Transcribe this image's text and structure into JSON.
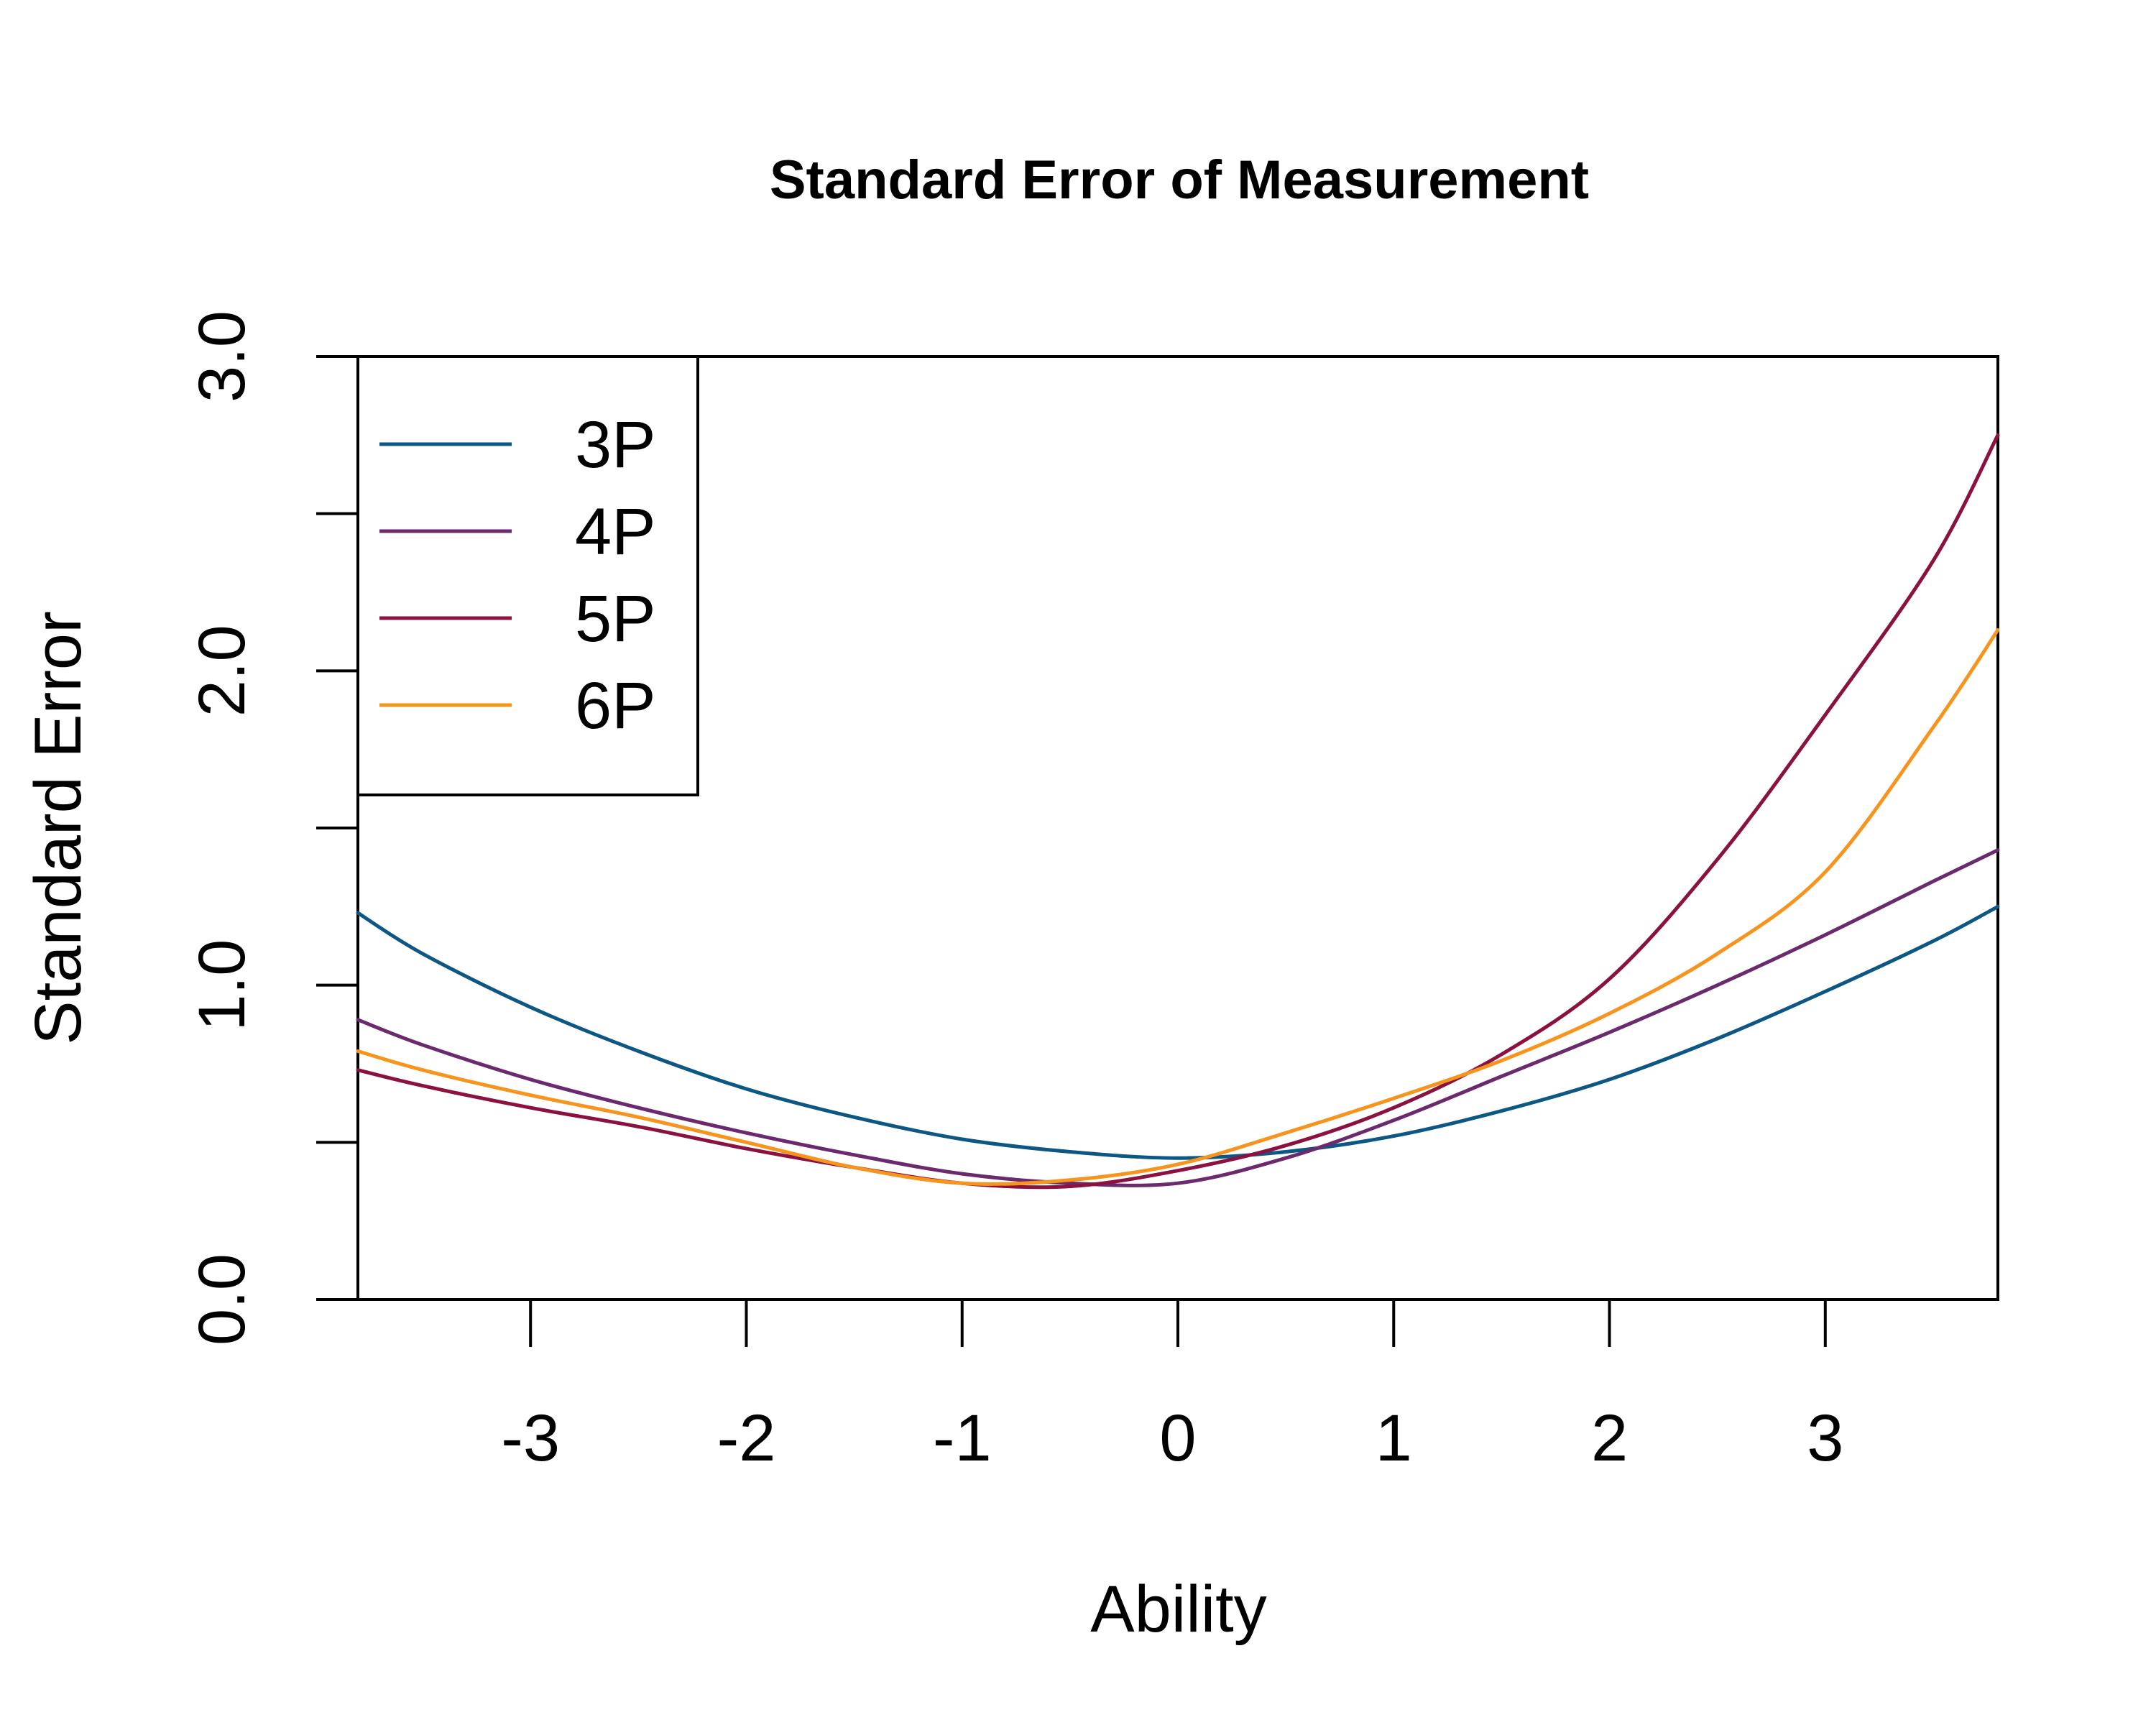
{
  "chart_data": {
    "type": "line",
    "title": "Standard Error of Measurement",
    "xlabel": "Ability",
    "ylabel": "Standard Error",
    "xlim": [
      -3.8,
      3.8
    ],
    "ylim": [
      0,
      3
    ],
    "x_ticks": [
      -3,
      -2,
      -1,
      0,
      1,
      2,
      3
    ],
    "x_tick_labels": [
      "-3",
      "-2",
      "-1",
      "0",
      "1",
      "2",
      "3"
    ],
    "y_ticks": [
      0,
      0.5,
      1,
      1.5,
      2,
      2.5,
      3
    ],
    "y_tick_labels": [
      "0.0",
      "",
      "1.0",
      "",
      "2.0",
      "",
      "3.0"
    ],
    "grid": false,
    "legend_position": "top-left",
    "x": [
      -3.8,
      -3.5,
      -3.0,
      -2.5,
      -2.0,
      -1.5,
      -1.0,
      -0.5,
      0.0,
      0.5,
      1.0,
      1.5,
      2.0,
      2.5,
      3.0,
      3.5,
      3.8
    ],
    "series": [
      {
        "name": "3P",
        "color": "#0d5784",
        "values": [
          1.23,
          1.1,
          0.93,
          0.79,
          0.67,
          0.58,
          0.51,
          0.47,
          0.45,
          0.47,
          0.52,
          0.6,
          0.7,
          0.83,
          0.98,
          1.14,
          1.25
        ]
      },
      {
        "name": "4P",
        "color": "#6b2a6e",
        "values": [
          0.89,
          0.81,
          0.7,
          0.61,
          0.53,
          0.46,
          0.4,
          0.37,
          0.37,
          0.45,
          0.57,
          0.71,
          0.85,
          1.0,
          1.16,
          1.33,
          1.43
        ]
      },
      {
        "name": "5P",
        "color": "#8b1140",
        "values": [
          0.73,
          0.68,
          0.61,
          0.55,
          0.48,
          0.42,
          0.37,
          0.36,
          0.41,
          0.49,
          0.61,
          0.78,
          1.02,
          1.4,
          1.86,
          2.35,
          2.75
        ]
      },
      {
        "name": "6P",
        "color": "#f7941d",
        "values": [
          0.79,
          0.73,
          0.65,
          0.58,
          0.5,
          0.42,
          0.37,
          0.38,
          0.43,
          0.53,
          0.64,
          0.76,
          0.91,
          1.1,
          1.36,
          1.82,
          2.13
        ]
      }
    ]
  }
}
